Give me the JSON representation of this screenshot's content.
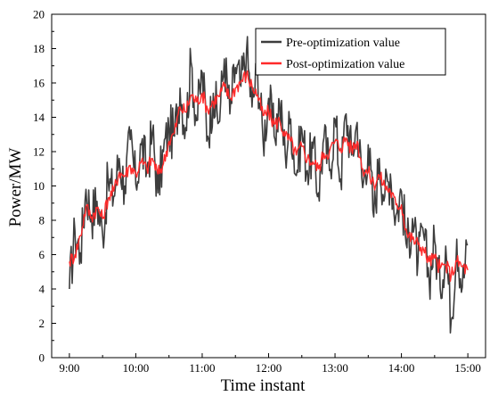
{
  "chart_data": {
    "type": "line",
    "title": "",
    "xlabel": "Time instant",
    "ylabel": "Power/MW",
    "x_ticks": [
      "9:00",
      "10:00",
      "11:00",
      "12:00",
      "13:00",
      "14:00",
      "15:00"
    ],
    "y_ticks": [
      "0",
      "2",
      "4",
      "6",
      "8",
      "10",
      "12",
      "14",
      "16",
      "18",
      "20"
    ],
    "ylim": [
      0,
      20
    ],
    "xlim": [
      "8:44",
      "15:16"
    ],
    "grid": false,
    "legend_position": "top-right",
    "series": [
      {
        "name": "Pre-optimization value",
        "color": "#3d3d3d",
        "x": [
          "9:00",
          "9:05",
          "9:10",
          "9:15",
          "9:20",
          "9:25",
          "9:30",
          "9:35",
          "9:40",
          "9:45",
          "9:50",
          "9:55",
          "10:00",
          "10:05",
          "10:10",
          "10:15",
          "10:20",
          "10:25",
          "10:30",
          "10:35",
          "10:40",
          "10:45",
          "10:50",
          "10:55",
          "11:00",
          "11:05",
          "11:10",
          "11:15",
          "11:20",
          "11:25",
          "11:30",
          "11:35",
          "11:40",
          "11:45",
          "11:50",
          "11:55",
          "12:00",
          "12:05",
          "12:10",
          "12:15",
          "12:20",
          "12:25",
          "12:30",
          "12:35",
          "12:40",
          "12:45",
          "12:50",
          "12:55",
          "13:00",
          "13:05",
          "13:10",
          "13:15",
          "13:20",
          "13:25",
          "13:30",
          "13:35",
          "13:40",
          "13:45",
          "13:50",
          "13:55",
          "14:00",
          "14:05",
          "14:10",
          "14:15",
          "14:20",
          "14:25",
          "14:30",
          "14:35",
          "14:40",
          "14:45",
          "14:50",
          "14:55",
          "15:00"
        ],
        "values": [
          4.0,
          7.4,
          6.1,
          9.8,
          8.3,
          9.1,
          7.2,
          10.3,
          9.4,
          11.6,
          10.0,
          12.7,
          10.1,
          12.4,
          10.9,
          13.1,
          9.6,
          12.0,
          13.3,
          12.9,
          15.7,
          13.4,
          17.2,
          13.8,
          16.6,
          12.9,
          15.4,
          13.7,
          17.4,
          14.2,
          16.9,
          15.8,
          17.9,
          14.6,
          16.8,
          12.6,
          15.1,
          12.9,
          14.8,
          11.9,
          13.9,
          10.6,
          13.3,
          10.9,
          12.2,
          9.6,
          12.8,
          10.9,
          13.9,
          10.4,
          14.2,
          11.8,
          13.7,
          9.9,
          12.4,
          8.2,
          11.6,
          9.4,
          10.7,
          8.3,
          9.7,
          6.4,
          8.1,
          5.6,
          7.2,
          4.6,
          6.8,
          4.0,
          6.5,
          2.2,
          6.9,
          4.1,
          6.6
        ]
      },
      {
        "name": "Post-optimization value",
        "color": "#ff2a2a",
        "x": [
          "9:00",
          "9:05",
          "9:10",
          "9:15",
          "9:20",
          "9:25",
          "9:30",
          "9:35",
          "9:40",
          "9:45",
          "9:50",
          "9:55",
          "10:00",
          "10:05",
          "10:10",
          "10:15",
          "10:20",
          "10:25",
          "10:30",
          "10:35",
          "10:40",
          "10:45",
          "10:50",
          "10:55",
          "11:00",
          "11:05",
          "11:10",
          "11:15",
          "11:20",
          "11:25",
          "11:30",
          "11:35",
          "11:40",
          "11:45",
          "11:50",
          "11:55",
          "12:00",
          "12:05",
          "12:10",
          "12:15",
          "12:20",
          "12:25",
          "12:30",
          "12:35",
          "12:40",
          "12:45",
          "12:50",
          "12:55",
          "13:00",
          "13:05",
          "13:10",
          "13:15",
          "13:20",
          "13:25",
          "13:30",
          "13:35",
          "13:40",
          "13:45",
          "13:50",
          "13:55",
          "14:00",
          "14:05",
          "14:10",
          "14:15",
          "14:20",
          "14:25",
          "14:30",
          "14:35",
          "14:40",
          "14:45",
          "14:50",
          "14:55",
          "15:00"
        ],
        "values": [
          5.6,
          6.0,
          7.1,
          8.8,
          8.2,
          8.7,
          8.1,
          9.3,
          9.7,
          10.8,
          10.6,
          11.2,
          10.7,
          11.4,
          11.0,
          11.6,
          10.7,
          11.3,
          12.6,
          13.1,
          14.6,
          14.3,
          15.3,
          14.9,
          15.4,
          14.4,
          14.9,
          15.2,
          15.8,
          15.1,
          15.7,
          16.1,
          16.5,
          15.8,
          15.3,
          14.1,
          14.3,
          13.6,
          13.8,
          12.9,
          12.6,
          11.8,
          12.3,
          11.6,
          11.4,
          11.0,
          11.9,
          12.0,
          12.6,
          12.2,
          12.8,
          12.1,
          12.6,
          11.0,
          10.8,
          10.1,
          10.6,
          10.0,
          9.7,
          8.9,
          8.9,
          7.2,
          6.9,
          6.6,
          6.3,
          5.6,
          5.8,
          5.2,
          5.4,
          4.8,
          5.6,
          5.3,
          5.1
        ]
      }
    ]
  }
}
